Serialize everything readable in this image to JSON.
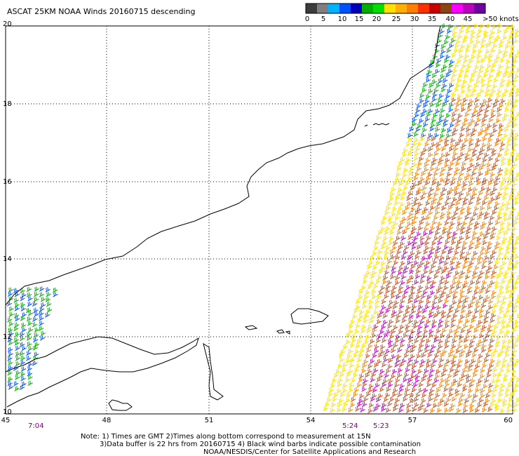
{
  "title": "ASCAT 25KM NOAA Winds 20160715 descending",
  "colorbar": {
    "colors": [
      "#3c3c3c",
      "#7f7f7f",
      "#00b2ff",
      "#0050ff",
      "#0000c0",
      "#00b000",
      "#00e000",
      "#ffe000",
      "#ffb000",
      "#ff8000",
      "#ff3000",
      "#c80000",
      "#8b4513",
      "#ff00ff",
      "#c000c0",
      "#7000a0"
    ],
    "labels": [
      "0",
      "5",
      "10",
      "15",
      "20",
      "25",
      "30",
      "35",
      "40",
      "45",
      ">50 knots"
    ]
  },
  "axes": {
    "x_ticks": [
      "45",
      "48",
      "51",
      "54",
      "57",
      "60"
    ],
    "y_ticks": [
      "20",
      "18",
      "16",
      "14",
      "12",
      "10"
    ]
  },
  "times": [
    "7:04",
    "5:24",
    "5:23"
  ],
  "notes": [
    "Note: 1) Times are GMT 2)Times along bottom correspond to measurement at 15N",
    "3)Data buffer is 22 hrs from 20160715 4) Black wind barbs indicate possible contamination",
    "NOAA/NESDIS/Center for Satellite Applications and Research"
  ],
  "barb_colors": {
    "blue": "#0050ff",
    "green": "#00b000",
    "yellow": "#ffe000",
    "orange": "#ff8000",
    "brown": "#c05020",
    "magenta": "#c000c0"
  }
}
